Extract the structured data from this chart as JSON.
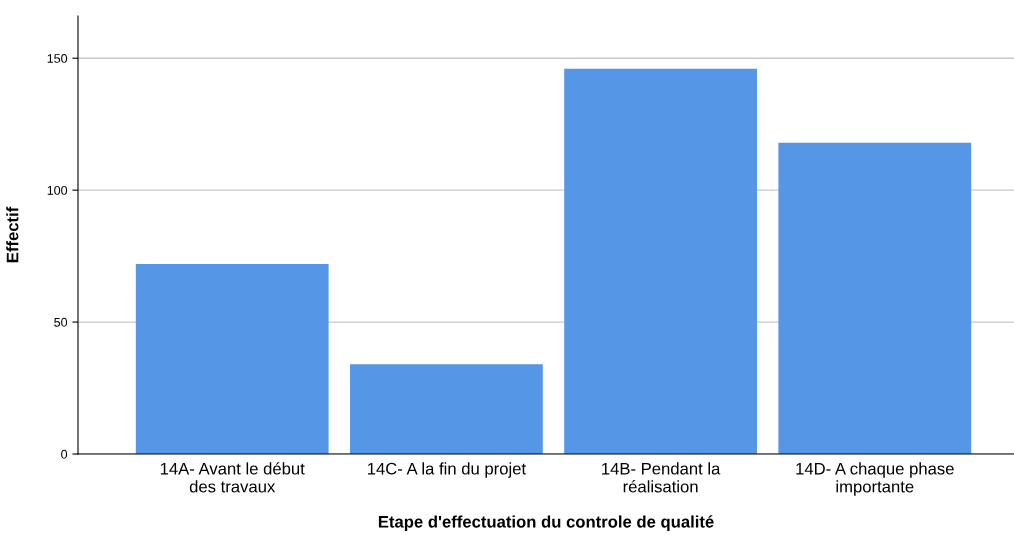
{
  "chart_data": {
    "type": "bar",
    "categories": [
      "14A- Avant le début\ndes travaux",
      "14C- A la fin du projet",
      "14B- Pendant la\nréalisation",
      "14D- A chaque phase\nimportante"
    ],
    "values": [
      72,
      34,
      146,
      118
    ],
    "color": "#5596e6",
    "xlabel": "Etape d'effectuation du controle de qualité",
    "ylabel": "Effectif",
    "ylim": [
      0,
      166
    ],
    "yticks": [
      0,
      50,
      100,
      150
    ],
    "grid": "y"
  }
}
